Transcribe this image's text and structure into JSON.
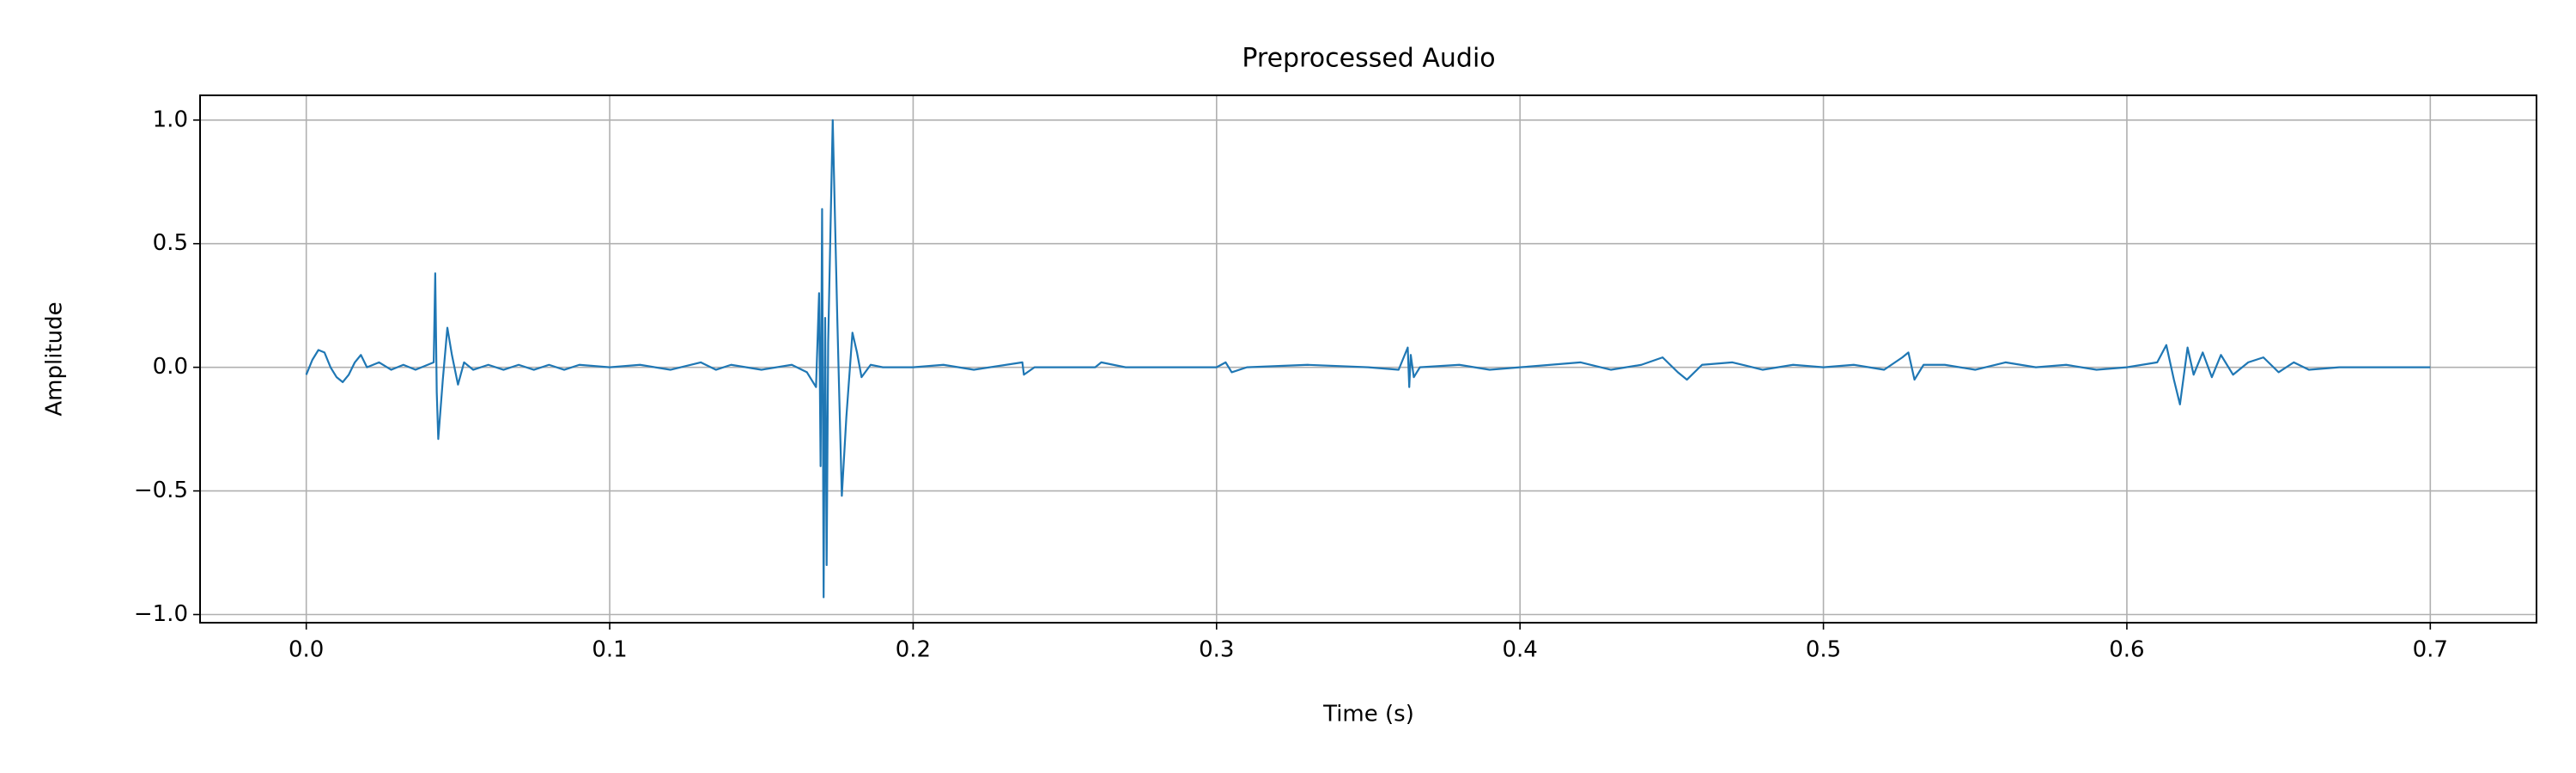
{
  "chart_data": {
    "type": "line",
    "title": "Preprocessed Audio",
    "x_label": "Time (s)",
    "y_label": "Amplitude",
    "grid": true,
    "xlim": [
      -0.035,
      0.735
    ],
    "ylim": [
      -1.033,
      1.1
    ],
    "xticks": [
      {
        "value": 0,
        "label": "0.0"
      },
      {
        "value": 0.1,
        "label": "0.1"
      },
      {
        "value": 0.2,
        "label": "0.2"
      },
      {
        "value": 0.3,
        "label": "0.3"
      },
      {
        "value": 0.4,
        "label": "0.4"
      },
      {
        "value": 0.5,
        "label": "0.5"
      },
      {
        "value": 0.6,
        "label": "0.6"
      },
      {
        "value": 0.7,
        "label": "0.7"
      }
    ],
    "yticks": [
      {
        "value": -1,
        "label": "−1.0"
      },
      {
        "value": -0.5,
        "label": "−0.5"
      },
      {
        "value": 0,
        "label": "0.0"
      },
      {
        "value": 0.5,
        "label": "0.5"
      },
      {
        "value": 1,
        "label": "1.0"
      }
    ],
    "x": [
      0.0,
      0.002,
      0.004,
      0.006,
      0.008,
      0.01,
      0.012,
      0.014,
      0.016,
      0.018,
      0.02,
      0.024,
      0.028,
      0.032,
      0.036,
      0.04,
      0.042,
      0.0425,
      0.043,
      0.0435,
      0.045,
      0.0465,
      0.048,
      0.05,
      0.052,
      0.055,
      0.06,
      0.065,
      0.07,
      0.075,
      0.08,
      0.085,
      0.09,
      0.1,
      0.11,
      0.12,
      0.13,
      0.135,
      0.14,
      0.15,
      0.16,
      0.165,
      0.168,
      0.169,
      0.1695,
      0.17,
      0.1705,
      0.171,
      0.1715,
      0.172,
      0.1735,
      0.175,
      0.1765,
      0.178,
      0.18,
      0.1815,
      0.183,
      0.186,
      0.19,
      0.2,
      0.21,
      0.22,
      0.236,
      0.2365,
      0.24,
      0.26,
      0.262,
      0.27,
      0.3,
      0.303,
      0.305,
      0.31,
      0.33,
      0.35,
      0.36,
      0.363,
      0.3635,
      0.364,
      0.365,
      0.367,
      0.38,
      0.39,
      0.4,
      0.42,
      0.43,
      0.44,
      0.447,
      0.452,
      0.455,
      0.46,
      0.47,
      0.48,
      0.49,
      0.5,
      0.51,
      0.52,
      0.526,
      0.528,
      0.53,
      0.533,
      0.54,
      0.55,
      0.56,
      0.57,
      0.58,
      0.59,
      0.6,
      0.61,
      0.613,
      0.6155,
      0.6175,
      0.62,
      0.622,
      0.625,
      0.628,
      0.631,
      0.635,
      0.64,
      0.645,
      0.65,
      0.655,
      0.66,
      0.67,
      0.68,
      0.69,
      0.7
    ],
    "series": [
      {
        "color": "#1f77b4",
        "values": [
          -0.03,
          0.03,
          0.07,
          0.06,
          0.0,
          -0.04,
          -0.06,
          -0.03,
          0.02,
          0.05,
          0.0,
          0.02,
          -0.01,
          0.01,
          -0.01,
          0.01,
          0.02,
          0.38,
          -0.1,
          -0.29,
          -0.05,
          0.16,
          0.05,
          -0.07,
          0.02,
          -0.01,
          0.01,
          -0.01,
          0.01,
          -0.01,
          0.01,
          -0.01,
          0.01,
          0.0,
          0.01,
          -0.01,
          0.02,
          -0.01,
          0.01,
          -0.01,
          0.01,
          -0.02,
          -0.08,
          0.3,
          -0.4,
          0.64,
          -0.93,
          0.2,
          -0.8,
          0.1,
          1.0,
          0.2,
          -0.52,
          -0.2,
          0.14,
          0.06,
          -0.04,
          0.01,
          0.0,
          0.0,
          0.01,
          -0.01,
          0.02,
          -0.03,
          0.0,
          0.0,
          0.02,
          0.0,
          0.0,
          0.02,
          -0.02,
          0.0,
          0.01,
          0.0,
          -0.01,
          0.08,
          -0.08,
          0.05,
          -0.04,
          0.0,
          0.01,
          -0.01,
          0.0,
          0.02,
          -0.01,
          0.01,
          0.04,
          -0.02,
          -0.05,
          0.01,
          0.02,
          -0.01,
          0.01,
          0.0,
          0.01,
          -0.01,
          0.04,
          0.06,
          -0.05,
          0.01,
          0.01,
          -0.01,
          0.02,
          0.0,
          0.01,
          -0.01,
          0.0,
          0.02,
          0.09,
          -0.05,
          -0.15,
          0.08,
          -0.03,
          0.06,
          -0.04,
          0.05,
          -0.03,
          0.02,
          0.04,
          -0.02,
          0.02,
          -0.01,
          0.0,
          0.0,
          0.0,
          0.0
        ]
      }
    ]
  }
}
